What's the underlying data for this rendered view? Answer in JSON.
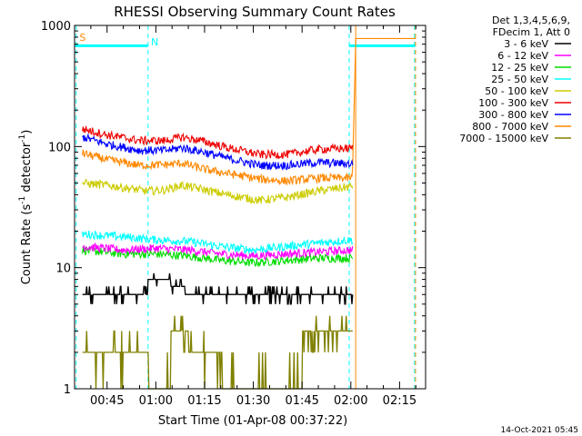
{
  "chart_data": {
    "type": "line",
    "title": "RHESSI Observing Summary Count Rates",
    "xlabel": "Start Time (01-Apr-08 00:37:22)",
    "ylabel_parts": [
      "Count Rate (s",
      "-1",
      " detector",
      "-1",
      ")"
    ],
    "y_scale": "log",
    "ylim": [
      1,
      1000
    ],
    "y_ticks": [
      {
        "v": 1,
        "label": "1"
      },
      {
        "v": 10,
        "label": "10"
      },
      {
        "v": 100,
        "label": "100"
      },
      {
        "v": 1000,
        "label": "1000"
      }
    ],
    "x_range_min": [
      35.0,
      143.0
    ],
    "x_ticks": [
      {
        "m": 45,
        "label": "00:45"
      },
      {
        "m": 60,
        "label": "01:00"
      },
      {
        "m": 75,
        "label": "01:15"
      },
      {
        "m": 90,
        "label": "01:30"
      },
      {
        "m": 105,
        "label": "01:45"
      },
      {
        "m": 120,
        "label": "02:00"
      },
      {
        "m": 135,
        "label": "02:15"
      }
    ],
    "legend_title": [
      "Det 1,3,4,5,6,9,",
      "FDecim 1, Att 0"
    ],
    "legend_placement": "right",
    "series": [
      {
        "name": "3 - 6 keV",
        "color": "#000000",
        "style": "step"
      },
      {
        "name": "6 - 12 keV",
        "color": "#ff00ff"
      },
      {
        "name": "12 - 25 keV",
        "color": "#00dd00"
      },
      {
        "name": "25 - 50 keV",
        "color": "#00ffff"
      },
      {
        "name": "50 - 100 keV",
        "color": "#cccc00"
      },
      {
        "name": "100 - 300 keV",
        "color": "#ee0000"
      },
      {
        "name": "300 - 800 keV",
        "color": "#0000ff"
      },
      {
        "name": "800 - 7000 keV",
        "color": "#ff8800"
      },
      {
        "name": "7000 - 15000 keV",
        "color": "#808000",
        "style": "step"
      }
    ],
    "series_x_range_min": [
      37.4,
      120.6
    ],
    "series_points": {
      "3 - 6 keV": [
        [
          37.4,
          6
        ],
        [
          57.4,
          6
        ],
        [
          57.5,
          8
        ],
        [
          64,
          8
        ],
        [
          64.5,
          7
        ],
        [
          69,
          6
        ],
        [
          120,
          6
        ]
      ],
      "6 - 12 keV": [
        [
          37.4,
          15
        ],
        [
          50,
          14
        ],
        [
          60,
          14.5
        ],
        [
          70,
          14
        ],
        [
          80,
          13
        ],
        [
          90,
          12.5
        ],
        [
          100,
          13
        ],
        [
          110,
          13.5
        ],
        [
          120.5,
          14
        ]
      ],
      "12 - 25 keV": [
        [
          37.4,
          14
        ],
        [
          50,
          13
        ],
        [
          60,
          13
        ],
        [
          70,
          12.5
        ],
        [
          80,
          11.5
        ],
        [
          90,
          11
        ],
        [
          100,
          11.5
        ],
        [
          110,
          12
        ],
        [
          120.5,
          12
        ]
      ],
      "25 - 50 keV": [
        [
          37.4,
          19
        ],
        [
          50,
          18
        ],
        [
          60,
          17
        ],
        [
          70,
          16.5
        ],
        [
          80,
          15
        ],
        [
          90,
          14
        ],
        [
          100,
          15
        ],
        [
          110,
          16
        ],
        [
          120.5,
          17
        ]
      ],
      "50 - 100 keV": [
        [
          37.4,
          50
        ],
        [
          45,
          48
        ],
        [
          57,
          43
        ],
        [
          63,
          44
        ],
        [
          68,
          48
        ],
        [
          75,
          44
        ],
        [
          82,
          40
        ],
        [
          92,
          36
        ],
        [
          100,
          38
        ],
        [
          110,
          43
        ],
        [
          120.5,
          47
        ]
      ],
      "100 - 300 keV": [
        [
          37.4,
          140
        ],
        [
          45,
          125
        ],
        [
          55,
          112
        ],
        [
          63,
          112
        ],
        [
          68,
          120
        ],
        [
          75,
          110
        ],
        [
          82,
          98
        ],
        [
          92,
          86
        ],
        [
          100,
          86
        ],
        [
          110,
          95
        ],
        [
          120.5,
          97
        ]
      ],
      "300 - 800 keV": [
        [
          37.4,
          120
        ],
        [
          45,
          105
        ],
        [
          55,
          93
        ],
        [
          63,
          93
        ],
        [
          68,
          98
        ],
        [
          75,
          90
        ],
        [
          82,
          80
        ],
        [
          92,
          70
        ],
        [
          100,
          70
        ],
        [
          110,
          74
        ],
        [
          120.5,
          72
        ]
      ],
      "800 - 7000 keV": [
        [
          37.4,
          88
        ],
        [
          45,
          78
        ],
        [
          55,
          70
        ],
        [
          63,
          71
        ],
        [
          68,
          73
        ],
        [
          75,
          65
        ],
        [
          82,
          60
        ],
        [
          92,
          54
        ],
        [
          100,
          52
        ],
        [
          110,
          55
        ],
        [
          120.5,
          55
        ],
        [
          121.5,
          780
        ],
        [
          140,
          780
        ]
      ],
      "7000 - 15000 keV": [
        [
          37.4,
          2
        ],
        [
          57.4,
          2
        ],
        [
          57.5,
          1
        ],
        [
          64,
          1
        ],
        [
          64.5,
          3
        ],
        [
          70,
          3
        ],
        [
          70.1,
          2
        ],
        [
          80,
          2
        ],
        [
          80.1,
          1
        ],
        [
          104.9,
          1
        ],
        [
          105,
          3
        ],
        [
          120,
          3
        ]
      ]
    },
    "s_flag_level": 680,
    "s_flag_segments": [
      [
        35.2,
        57.6
      ],
      [
        119.5,
        139.8
      ]
    ],
    "cyan_markers_min": [
      35.5,
      57.6,
      119.5,
      139.6
    ],
    "orange_markers_min": [
      121.5,
      139.9
    ],
    "region_labels": [
      {
        "text": "S",
        "color": "#ff8800"
      },
      {
        "text": "N",
        "color": "#00ffff"
      }
    ]
  },
  "footer_timestamp": "14-Oct-2021 05:45"
}
